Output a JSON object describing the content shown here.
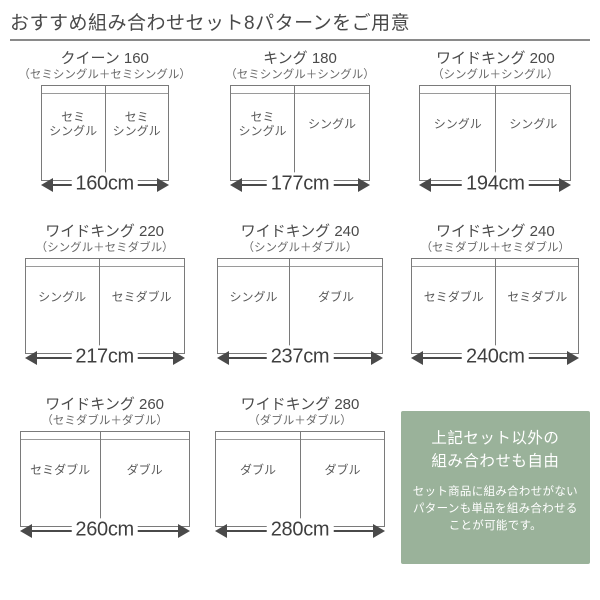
{
  "title": "おすすめ組み合わせセット8パターンをご用意",
  "patterns": [
    {
      "name": "クイーン 160",
      "combo": "（セミシングル＋セミシングル）",
      "left_label": "セミ\nシングル",
      "right_label": "セミ\nシングル",
      "left_w": 64,
      "right_w": 64,
      "total_w": 128,
      "width_label": "160cm"
    },
    {
      "name": "キング 180",
      "combo": "（セミシングル＋シングル）",
      "left_label": "セミ\nシングル",
      "right_label": "シングル",
      "left_w": 64,
      "right_w": 76,
      "total_w": 140,
      "width_label": "177cm"
    },
    {
      "name": "ワイドキング 200",
      "combo": "（シングル＋シングル）",
      "left_label": "シングル",
      "right_label": "シングル",
      "left_w": 76,
      "right_w": 76,
      "total_w": 152,
      "width_label": "194cm"
    },
    {
      "name": "ワイドキング 220",
      "combo": "（シングル＋セミダブル）",
      "left_label": "シングル",
      "right_label": "セミダブル",
      "left_w": 74,
      "right_w": 86,
      "total_w": 160,
      "width_label": "217cm"
    },
    {
      "name": "ワイドキング 240",
      "combo": "（シングル＋ダブル）",
      "left_label": "シングル",
      "right_label": "ダブル",
      "left_w": 72,
      "right_w": 94,
      "total_w": 166,
      "width_label": "237cm"
    },
    {
      "name": "ワイドキング 240",
      "combo": "（セミダブル＋セミダブル）",
      "left_label": "セミダブル",
      "right_label": "セミダブル",
      "left_w": 84,
      "right_w": 84,
      "total_w": 168,
      "width_label": "240cm"
    },
    {
      "name": "ワイドキング 260",
      "combo": "（セミダブル＋ダブル）",
      "left_label": "セミダブル",
      "right_label": "ダブル",
      "left_w": 80,
      "right_w": 90,
      "total_w": 170,
      "width_label": "260cm"
    },
    {
      "name": "ワイドキング 280",
      "combo": "（ダブル＋ダブル）",
      "left_label": "ダブル",
      "right_label": "ダブル",
      "left_w": 85,
      "right_w": 85,
      "total_w": 170,
      "width_label": "280cm"
    }
  ],
  "info": {
    "heading": "上記セット以外の\n組み合わせも自由",
    "body": "セット商品に組み合わせがないパターンも単品を組み合わせることが可能です。"
  },
  "colors": {
    "bg": "#ffffff",
    "text": "#4a4a4a",
    "border": "#7a7a7a",
    "info_bg": "#9ab29a",
    "info_text": "#ffffff",
    "arrow": "#4a4a4a"
  }
}
